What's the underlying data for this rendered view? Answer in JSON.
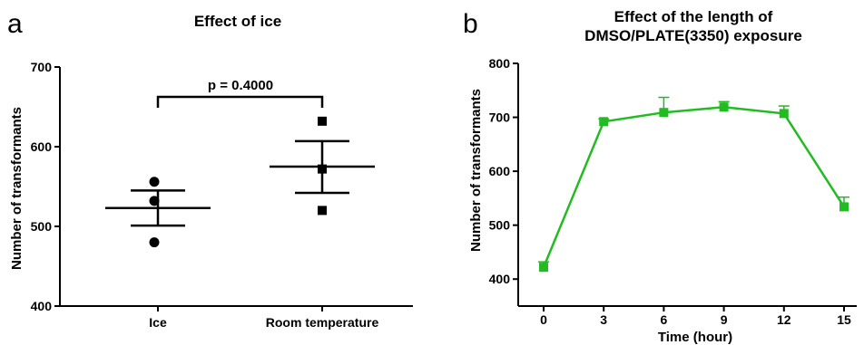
{
  "panels": {
    "a": {
      "letter": "a"
    },
    "b": {
      "letter": "b"
    }
  },
  "colors": {
    "line_green": "#22bb22",
    "black": "#000000"
  },
  "chart_data": [
    {
      "type": "scatter",
      "title": "Effect of ice",
      "xlabel": "",
      "ylabel": "Number of transformants",
      "ylim": [
        400,
        700
      ],
      "yticks": [
        400,
        500,
        600,
        700
      ],
      "categories": [
        "Ice",
        "Room temperature"
      ],
      "series": [
        {
          "name": "Ice",
          "marker": "circle",
          "points": [
            556,
            532,
            480
          ],
          "mean": 523,
          "sem_upper": 545,
          "sem_lower": 501
        },
        {
          "name": "Room temperature",
          "marker": "square",
          "points": [
            632,
            572,
            520
          ],
          "mean": 575,
          "sem_upper": 607,
          "sem_lower": 542
        }
      ],
      "annotation": {
        "text": "p  = 0.4000"
      },
      "grid": false
    },
    {
      "type": "line",
      "title": "Effect of the length of DMSO/PLATE(3350) exposure",
      "title_lines": [
        "Effect of the length of",
        "DMSO/PLATE(3350) exposure"
      ],
      "xlabel": "Time (hour)",
      "ylabel": "Number of transformants",
      "xlim": [
        0,
        15
      ],
      "ylim": [
        350,
        800
      ],
      "xticks": [
        0,
        3,
        6,
        9,
        12,
        15
      ],
      "yticks": [
        400,
        500,
        600,
        700,
        800
      ],
      "x": [
        0,
        3,
        6,
        9,
        12,
        15
      ],
      "y": [
        422,
        692,
        709,
        719,
        707,
        534
      ],
      "err": [
        10,
        5,
        28,
        10,
        14,
        18
      ],
      "marker": "square",
      "grid": false
    }
  ]
}
